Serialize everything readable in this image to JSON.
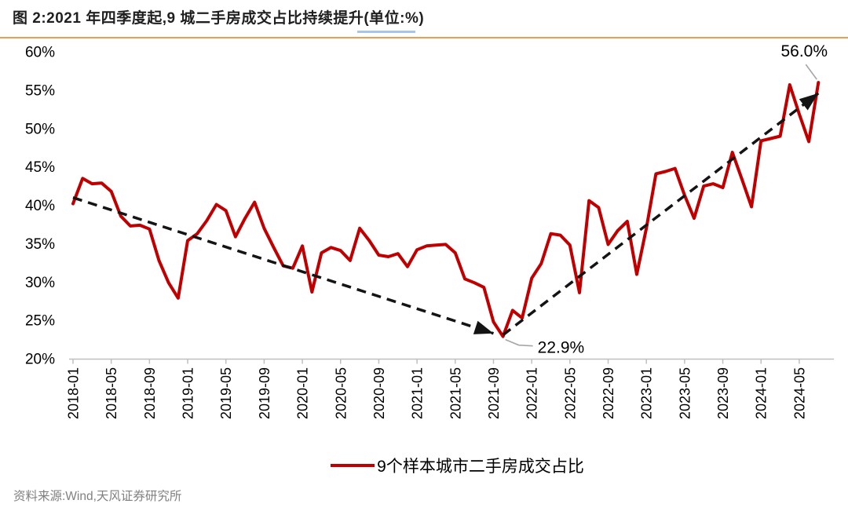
{
  "page": {
    "title": "图 2:2021 年四季度起,9 城二手房成交占比持续提升(单位:%)",
    "source": "资料来源:Wind,天风证券研究所",
    "colors": {
      "accent_rule": "#ee9c50",
      "title_underline": "#a6c5ea",
      "series_red": "#c00000",
      "axis_gray": "#bfbfbf",
      "callout_gray": "#a6a6a6",
      "arrow_black": "#141414",
      "source_gray": "#808080"
    }
  },
  "chart_data": {
    "type": "line",
    "title": "图 2:2021 年四季度起,9 城二手房成交占比持续提升(单位:%)",
    "unit": "%",
    "grid": false,
    "ylim": [
      20,
      60
    ],
    "y_tick_labels": [
      "60%",
      "55%",
      "50%",
      "45%",
      "40%",
      "35%",
      "30%",
      "25%",
      "20%"
    ],
    "x_tick_labels": [
      "2018-01",
      "2018-05",
      "2018-09",
      "2019-01",
      "2019-05",
      "2019-09",
      "2020-01",
      "2020-05",
      "2020-09",
      "2021-01",
      "2021-05",
      "2021-09",
      "2022-01",
      "2022-05",
      "2022-09",
      "2023-01",
      "2023-05",
      "2023-09",
      "2024-01",
      "2024-05"
    ],
    "months": [
      "2018-01",
      "2018-02",
      "2018-03",
      "2018-04",
      "2018-05",
      "2018-06",
      "2018-07",
      "2018-08",
      "2018-09",
      "2018-10",
      "2018-11",
      "2018-12",
      "2019-01",
      "2019-02",
      "2019-03",
      "2019-04",
      "2019-05",
      "2019-06",
      "2019-07",
      "2019-08",
      "2019-09",
      "2019-10",
      "2019-11",
      "2019-12",
      "2020-01",
      "2020-02",
      "2020-03",
      "2020-04",
      "2020-05",
      "2020-06",
      "2020-07",
      "2020-08",
      "2020-09",
      "2020-10",
      "2020-11",
      "2020-12",
      "2021-01",
      "2021-02",
      "2021-03",
      "2021-04",
      "2021-05",
      "2021-06",
      "2021-07",
      "2021-08",
      "2021-09",
      "2021-10",
      "2021-11",
      "2021-12",
      "2022-01",
      "2022-02",
      "2022-03",
      "2022-04",
      "2022-05",
      "2022-06",
      "2022-07",
      "2022-08",
      "2022-09",
      "2022-10",
      "2022-11",
      "2022-12",
      "2023-01",
      "2023-02",
      "2023-03",
      "2023-04",
      "2023-05",
      "2023-06",
      "2023-07",
      "2023-08",
      "2023-09",
      "2023-10",
      "2023-11",
      "2023-12",
      "2024-01",
      "2024-02",
      "2024-03",
      "2024-04",
      "2024-05",
      "2024-06",
      "2024-07"
    ],
    "series": [
      {
        "name": "9个样本城市二手房成交占比",
        "color": "#c00000",
        "values": [
          40.2,
          43.5,
          42.8,
          42.9,
          41.8,
          38.6,
          37.3,
          37.4,
          36.9,
          32.8,
          29.9,
          27.9,
          35.4,
          36.3,
          38.0,
          40.1,
          39.3,
          35.9,
          38.3,
          40.4,
          37.0,
          34.5,
          32.1,
          31.8,
          34.7,
          28.7,
          33.8,
          34.5,
          34.1,
          32.8,
          37.0,
          35.4,
          33.5,
          33.3,
          33.7,
          32.0,
          34.2,
          34.7,
          34.8,
          34.9,
          33.8,
          30.4,
          29.9,
          29.3,
          24.8,
          22.9,
          26.3,
          25.3,
          30.5,
          32.4,
          36.3,
          36.1,
          34.8,
          28.6,
          40.6,
          39.7,
          34.9,
          36.7,
          37.9,
          31.0,
          37.0,
          44.1,
          44.4,
          44.8,
          41.3,
          38.3,
          42.5,
          42.8,
          42.3,
          46.9,
          43.4,
          39.8,
          48.4,
          48.7,
          49.0,
          55.7,
          51.9,
          48.3,
          56.0
        ]
      }
    ],
    "annotations": [
      {
        "text": "22.9%",
        "month": "2021-10",
        "value": 22.9,
        "placement": "below-right"
      },
      {
        "text": "56.0%",
        "month": "2024-07",
        "value": 56.0,
        "placement": "above-left"
      }
    ],
    "trend_arrows": [
      {
        "direction": "down",
        "from": {
          "month": "2018-01",
          "value": 41.0
        },
        "to": {
          "month": "2021-09",
          "value": 23.3
        }
      },
      {
        "direction": "up",
        "from": {
          "month": "2021-10",
          "value": 23.1
        },
        "to": {
          "month": "2024-07",
          "value": 54.6
        }
      }
    ],
    "legend": {
      "position": "bottom",
      "entries": [
        {
          "label": "9个样本城市二手房成交占比",
          "color": "#c00000"
        }
      ]
    }
  }
}
